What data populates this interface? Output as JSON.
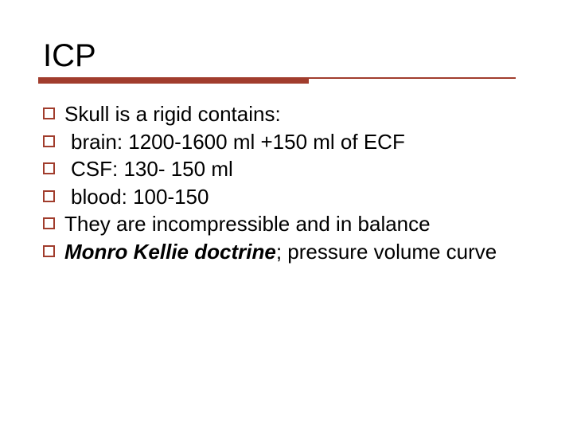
{
  "title": "ICP",
  "colors": {
    "accent": "#a13d2d",
    "text": "#000000",
    "background": "#ffffff"
  },
  "typography": {
    "title_fontsize": 40,
    "body_fontsize": 26,
    "font_family": "Verdana"
  },
  "underline": {
    "thick_height": 8,
    "thin_height": 2,
    "thick_width": 340
  },
  "bullets": [
    {
      "text": "Skull is a rigid contains:",
      "indent": false,
      "emphasis": null
    },
    {
      "text": " brain: 1200-1600 ml +150 ml of ECF",
      "indent": true,
      "emphasis": null
    },
    {
      "text": " CSF: 130- 150 ml",
      "indent": true,
      "emphasis": null
    },
    {
      "text": " blood: 100-150",
      "indent": true,
      "emphasis": null
    },
    {
      "text": "They are incompressible and in balance",
      "indent": false,
      "emphasis": null
    },
    {
      "text_pre": "",
      "emphasis": "Monro Kellie doctrine",
      "text_post": "; pressure volume curve",
      "indent": false
    }
  ]
}
